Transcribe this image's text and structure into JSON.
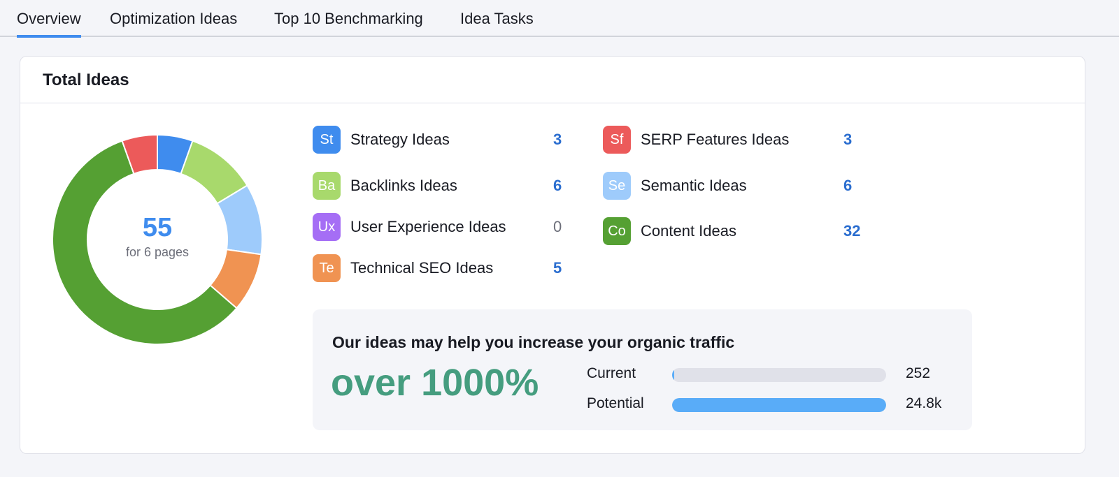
{
  "tabs": [
    {
      "label": "Overview",
      "active": true
    },
    {
      "label": "Optimization Ideas"
    },
    {
      "label": "Top 10 Benchmarking"
    },
    {
      "label": "Idea Tasks"
    }
  ],
  "card": {
    "title": "Total Ideas"
  },
  "donut": {
    "total": "55",
    "subtitle": "for 6 pages"
  },
  "categories": [
    {
      "abbr": "St",
      "label": "Strategy Ideas",
      "count": 3,
      "color": "#3f8cee"
    },
    {
      "abbr": "Ba",
      "label": "Backlinks Ideas",
      "count": 6,
      "color": "#a8d96c"
    },
    {
      "abbr": "Ux",
      "label": "User Experience Ideas",
      "count": 0,
      "color": "#a56ef5"
    },
    {
      "abbr": "Te",
      "label": "Technical SEO Ideas",
      "count": 5,
      "color": "#f09352"
    },
    {
      "abbr": "Sf",
      "label": "SERP Features Ideas",
      "count": 3,
      "color": "#ec5a5a"
    },
    {
      "abbr": "Se",
      "label": "Semantic Ideas",
      "count": 6,
      "color": "#9ecbfb"
    },
    {
      "abbr": "Co",
      "label": "Content Ideas",
      "count": 32,
      "color": "#55a033"
    }
  ],
  "promo": {
    "title": "Our ideas may help you increase your organic traffic",
    "headline": "over 1000%",
    "current": {
      "label": "Current",
      "value": "252",
      "fraction": 0.01
    },
    "potential": {
      "label": "Potential",
      "value": "24.8k",
      "fraction": 1.0
    }
  }
}
